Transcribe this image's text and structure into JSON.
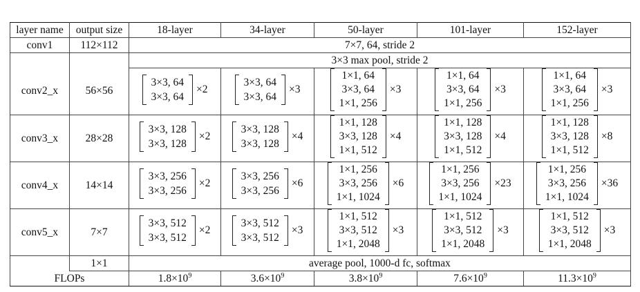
{
  "header": [
    "layer name",
    "output size",
    "18-layer",
    "34-layer",
    "50-layer",
    "101-layer",
    "152-layer"
  ],
  "conv1": {
    "name": "conv1",
    "output": "112×112",
    "spec": "7×7, 64, stride 2"
  },
  "pool": {
    "spec": "3×3 max pool, stride 2"
  },
  "conv2": {
    "name": "conv2_x",
    "output": "56×56",
    "b18": {
      "lines": [
        "3×3, 64",
        "3×3, 64"
      ],
      "mult": "×2"
    },
    "b34": {
      "lines": [
        "3×3, 64",
        "3×3, 64"
      ],
      "mult": "×3"
    },
    "b50": {
      "lines": [
        "1×1, 64",
        "3×3, 64",
        "1×1, 256"
      ],
      "mult": "×3"
    },
    "b101": {
      "lines": [
        "1×1, 64",
        "3×3, 64",
        "1×1, 256"
      ],
      "mult": "×3"
    },
    "b152": {
      "lines": [
        "1×1, 64",
        "3×3, 64",
        "1×1, 256"
      ],
      "mult": "×3"
    }
  },
  "conv3": {
    "name": "conv3_x",
    "output": "28×28",
    "b18": {
      "lines": [
        "3×3, 128",
        "3×3, 128"
      ],
      "mult": "×2"
    },
    "b34": {
      "lines": [
        "3×3, 128",
        "3×3, 128"
      ],
      "mult": "×4"
    },
    "b50": {
      "lines": [
        "1×1, 128",
        "3×3, 128",
        "1×1, 512"
      ],
      "mult": "×4"
    },
    "b101": {
      "lines": [
        "1×1, 128",
        "3×3, 128",
        "1×1, 512"
      ],
      "mult": "×4"
    },
    "b152": {
      "lines": [
        "1×1, 128",
        "3×3, 128",
        "1×1, 512"
      ],
      "mult": "×8"
    }
  },
  "conv4": {
    "name": "conv4_x",
    "output": "14×14",
    "b18": {
      "lines": [
        "3×3, 256",
        "3×3, 256"
      ],
      "mult": "×2"
    },
    "b34": {
      "lines": [
        "3×3, 256",
        "3×3, 256"
      ],
      "mult": "×6"
    },
    "b50": {
      "lines": [
        "1×1, 256",
        "3×3, 256",
        "1×1, 1024"
      ],
      "mult": "×6"
    },
    "b101": {
      "lines": [
        "1×1, 256",
        "3×3, 256",
        "1×1, 1024"
      ],
      "mult": "×23"
    },
    "b152": {
      "lines": [
        "1×1, 256",
        "3×3, 256",
        "1×1, 1024"
      ],
      "mult": "×36"
    }
  },
  "conv5": {
    "name": "conv5_x",
    "output": "7×7",
    "b18": {
      "lines": [
        "3×3, 512",
        "3×3, 512"
      ],
      "mult": "×2"
    },
    "b34": {
      "lines": [
        "3×3, 512",
        "3×3, 512"
      ],
      "mult": "×3"
    },
    "b50": {
      "lines": [
        "1×1, 512",
        "3×3, 512",
        "1×1, 2048"
      ],
      "mult": "×3"
    },
    "b101": {
      "lines": [
        "1×1, 512",
        "3×3, 512",
        "1×1, 2048"
      ],
      "mult": "×3"
    },
    "b152": {
      "lines": [
        "1×1, 512",
        "3×3, 512",
        "1×1, 2048"
      ],
      "mult": "×3"
    }
  },
  "final": {
    "output": "1×1",
    "spec": "average pool, 1000-d fc, softmax"
  },
  "flops": {
    "label": "FLOPs",
    "values": [
      {
        "base": "1.8×10",
        "exp": "9"
      },
      {
        "base": "3.6×10",
        "exp": "9"
      },
      {
        "base": "3.8×10",
        "exp": "9"
      },
      {
        "base": "7.6×10",
        "exp": "9"
      },
      {
        "base": "11.3×10",
        "exp": "9"
      }
    ]
  }
}
